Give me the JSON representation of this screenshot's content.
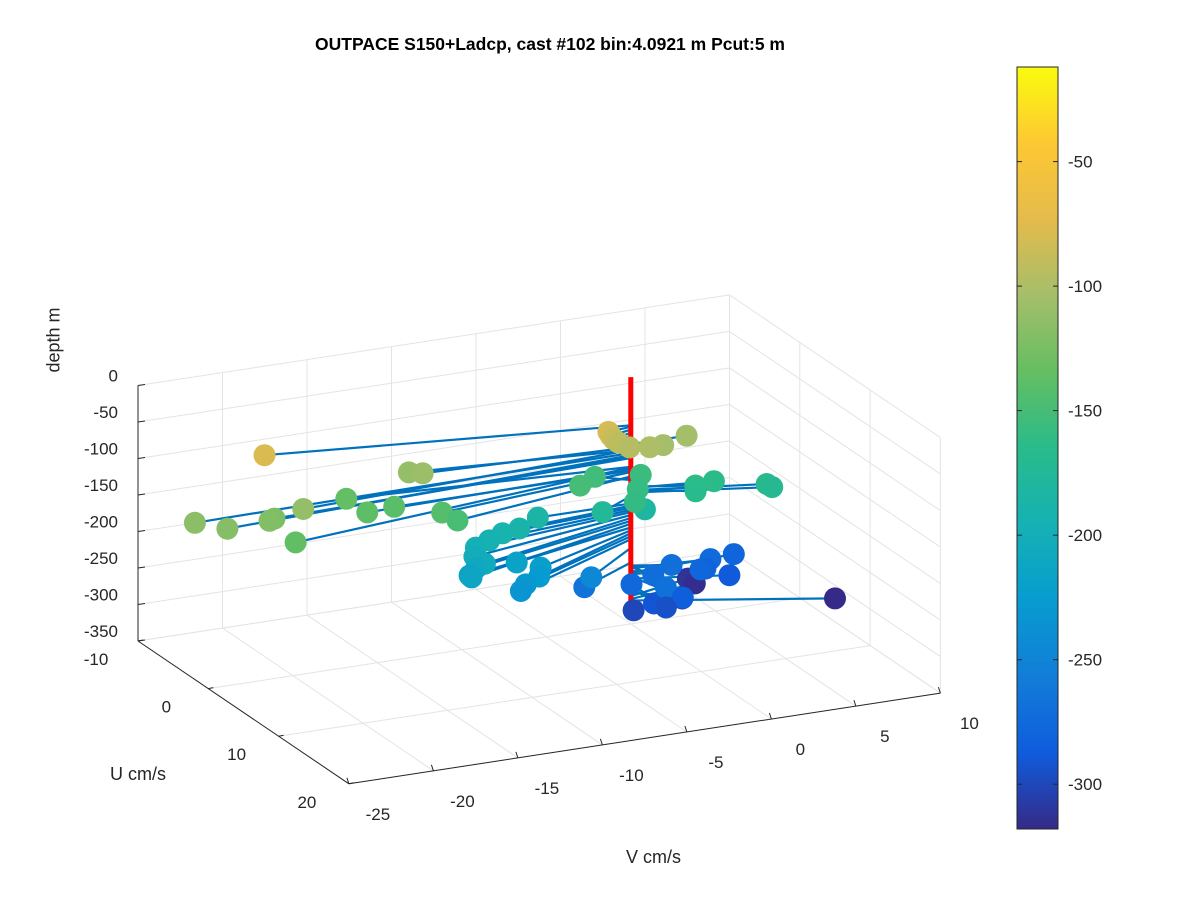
{
  "chart_data": {
    "type": "scatter",
    "title": "OUTPACE S150+Ladcp, cast #102 bin:4.0921 m  Pcut:5 m",
    "zlabel": "depth m",
    "xlabel": "U cm/s",
    "ylabel": "V cm/s",
    "ylabel_depth_axis": "depth m",
    "u_ticks": [
      "-10",
      "0",
      "10",
      "20"
    ],
    "v_ticks": [
      "-25",
      "-20",
      "-15",
      "-10",
      "-5",
      "0",
      "5",
      "10"
    ],
    "depth_ticks": [
      "0",
      "-50",
      "-100",
      "-150",
      "-200",
      "-250",
      "-300",
      "-350"
    ],
    "colorbar": {
      "ticks": [
        "-50",
        "-100",
        "-150",
        "-200",
        "-250",
        "-300"
      ],
      "range": [
        -318,
        -12
      ],
      "colormap": "parula"
    },
    "profile_line_color": "#ff0000",
    "stem_color": "#0072bd",
    "grid": true,
    "points": [
      {
        "v": -1.45,
        "u": 0.3,
        "depth": -80
      },
      {
        "v": -1.4,
        "u": 0.5,
        "depth": -84
      },
      {
        "v": -1.3,
        "u": 0.7,
        "depth": -88
      },
      {
        "v": -1.1,
        "u": 0.9,
        "depth": -92
      },
      {
        "v": -0.7,
        "u": 1.5,
        "depth": -96
      },
      {
        "v": 0.5,
        "u": 1.5,
        "depth": -100
      },
      {
        "v": 1.5,
        "u": 1.0,
        "depth": -104
      },
      {
        "v": 3.3,
        "u": 0.0,
        "depth": -104
      },
      {
        "v": -11.9,
        "u": -1.0,
        "depth": -108
      },
      {
        "v": -12.3,
        "u": -2.0,
        "depth": -112
      },
      {
        "v": -19.8,
        "u": -4.5,
        "depth": -78
      },
      {
        "v": -20.0,
        "u": 1.5,
        "depth": -112
      },
      {
        "v": -26.0,
        "u": 0.5,
        "depth": -116
      },
      {
        "v": -24.7,
        "u": 2.0,
        "depth": -119
      },
      {
        "v": -22.0,
        "u": 1.5,
        "depth": -121
      },
      {
        "v": -21.5,
        "u": 1.0,
        "depth": -123
      },
      {
        "v": -21.5,
        "u": 4.0,
        "depth": -136
      },
      {
        "v": -16.0,
        "u": -2.0,
        "depth": -135
      },
      {
        "v": -15.8,
        "u": 0.5,
        "depth": -138
      },
      {
        "v": -14.0,
        "u": 0.0,
        "depth": -140
      },
      {
        "v": -12.0,
        "u": 2.0,
        "depth": -142
      },
      {
        "v": -11.5,
        "u": 3.0,
        "depth": -148
      },
      {
        "v": -3.0,
        "u": 0.0,
        "depth": -150
      },
      {
        "v": -1.5,
        "u": -1.5,
        "depth": -153
      },
      {
        "v": 1.0,
        "u": -1.0,
        "depth": -156
      },
      {
        "v": 0.0,
        "u": 1.0,
        "depth": -159
      },
      {
        "v": -1.0,
        "u": 3.0,
        "depth": -160
      },
      {
        "v": 3.2,
        "u": 1.5,
        "depth": -162
      },
      {
        "v": 4.5,
        "u": 1.0,
        "depth": -164
      },
      {
        "v": 3.0,
        "u": 2.0,
        "depth": -166
      },
      {
        "v": 7.0,
        "u": 2.5,
        "depth": -167
      },
      {
        "v": 7.2,
        "u": 2.8,
        "depth": -170
      },
      {
        "v": -2.5,
        "u": 2.0,
        "depth": -175
      },
      {
        "v": 0.0,
        "u": 2.0,
        "depth": -180
      },
      {
        "v": -5.5,
        "u": 0.0,
        "depth": -185
      },
      {
        "v": -7.0,
        "u": 1.0,
        "depth": -188
      },
      {
        "v": -8.0,
        "u": 1.0,
        "depth": -191
      },
      {
        "v": -9.0,
        "u": 1.5,
        "depth": -194
      },
      {
        "v": -10.0,
        "u": 2.0,
        "depth": -197
      },
      {
        "v": -10.5,
        "u": 3.0,
        "depth": -201
      },
      {
        "v": -10.3,
        "u": 4.0,
        "depth": -205
      },
      {
        "v": -10.8,
        "u": 4.0,
        "depth": -209
      },
      {
        "v": -11.5,
        "u": 5.0,
        "depth": -213
      },
      {
        "v": -11.2,
        "u": 4.0,
        "depth": -218
      },
      {
        "v": -8.0,
        "u": 3.0,
        "depth": -218
      },
      {
        "v": -7.0,
        "u": 4.0,
        "depth": -222
      },
      {
        "v": -7.5,
        "u": 5.0,
        "depth": -226
      },
      {
        "v": -8.5,
        "u": 5.5,
        "depth": -230
      },
      {
        "v": -9.0,
        "u": 6.0,
        "depth": -234
      },
      {
        "v": -4.0,
        "u": 4.0,
        "depth": -246
      },
      {
        "v": -4.0,
        "u": 3.0,
        "depth": -266
      },
      {
        "v": 0.0,
        "u": 5.0,
        "depth": -268
      },
      {
        "v": 2.0,
        "u": 1.0,
        "depth": -270
      },
      {
        "v": 0.5,
        "u": 2.0,
        "depth": -272
      },
      {
        "v": 4.5,
        "u": 0.5,
        "depth": -274
      },
      {
        "v": -1.0,
        "u": 2.5,
        "depth": -276
      },
      {
        "v": 3.5,
        "u": 1.5,
        "depth": -278
      },
      {
        "v": 6.3,
        "u": -0.5,
        "depth": -280
      },
      {
        "v": 4.0,
        "u": 1.0,
        "depth": -282
      },
      {
        "v": 1.0,
        "u": 5.0,
        "depth": -285
      },
      {
        "v": 5.0,
        "u": 2.0,
        "depth": -288
      },
      {
        "v": -0.5,
        "u": 4.5,
        "depth": -291
      },
      {
        "v": 0.0,
        "u": 5.0,
        "depth": -295
      },
      {
        "v": -1.5,
        "u": 4.0,
        "depth": -300
      },
      {
        "v": 0.5,
        "u": 3.0,
        "depth": -303
      },
      {
        "v": 2.0,
        "u": 2.5,
        "depth": -306
      },
      {
        "v": 4.0,
        "u": -1.5,
        "depth": -312
      },
      {
        "v": 4.2,
        "u": -1.0,
        "depth": -316
      },
      {
        "v": 10.0,
        "u": 5.0,
        "depth": -318
      }
    ]
  }
}
